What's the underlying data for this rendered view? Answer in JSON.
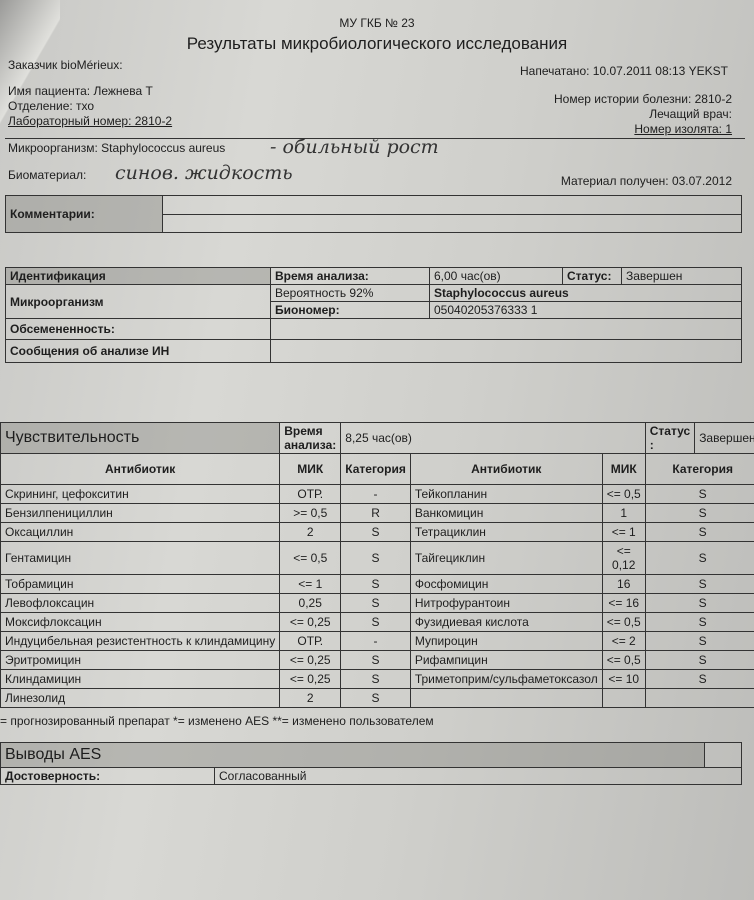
{
  "header": {
    "institution": "МУ ГКБ № 23",
    "title": "Результаты микробиологического исследования",
    "customer": "Заказчик bioMérieux:",
    "printed": "Напечатано: 10.07.2011  08:13 YEKST",
    "patient_name": "Имя пациента: Лежнева  Т",
    "department": "Отделение: тхо",
    "lab_number": "Лабораторный номер: 2810-2",
    "history_number": "Номер истории болезни: 2810-2",
    "doctor": "Лечащий врач:",
    "isolate_number": "Номер изолята: 1",
    "microorganism": "Микроорганизм: Staphylococcus aureus",
    "microorganism_handwritten": "- обильный рост",
    "biomaterial_label": "Биоматериал:",
    "biomaterial_handwritten": "синов. жидкость",
    "material_received": "Материал получен: 03.07.2012"
  },
  "comments": {
    "label": "Комментарии:"
  },
  "identification": {
    "label": "Идентификация",
    "time_label": "Время анализа:",
    "time_value": "6,00 час(ов)",
    "status_label": "Статус:",
    "status_value": "Завершен",
    "microorganism_label": "Микроорганизм",
    "probability": "Вероятность 92%",
    "organism": "Staphylococcus aureus",
    "bionumber_label": "Биономер:",
    "bionumber": "05040205376333 1",
    "contamination_label": "Обсемененность:",
    "messages_label": "Сообщения об анализе ИН"
  },
  "sensitivity": {
    "label": "Чувствительность",
    "time_label": "Время анализа:",
    "time_value": "8,25 час(ов)",
    "status_label": "Статус :",
    "status_value": "Завершен",
    "columns": [
      "Антибиотик",
      "МИК",
      "Категория"
    ],
    "rows": [
      {
        "a1": "Скрининг, цефокситин",
        "m1": "ОТР.",
        "c1": "-",
        "a2": "Тейкопланин",
        "m2": "<= 0,5",
        "c2": "S"
      },
      {
        "a1": "Бензилпенициллин",
        "m1": ">= 0,5",
        "c1": "R",
        "a2": "Ванкомицин",
        "m2": "1",
        "c2": "S"
      },
      {
        "a1": "Оксациллин",
        "m1": "2",
        "c1": "S",
        "a2": "Тетрациклин",
        "m2": "<= 1",
        "c2": "S"
      },
      {
        "a1": "Гентамицин",
        "m1": "<= 0,5",
        "c1": "S",
        "a2": "Тайгециклин",
        "m2": "<= 0,12",
        "c2": "S"
      },
      {
        "a1": "Тобрамицин",
        "m1": "<= 1",
        "c1": "S",
        "a2": "Фосфомицин",
        "m2": "16",
        "c2": "S"
      },
      {
        "a1": "Левофлоксацин",
        "m1": "0,25",
        "c1": "S",
        "a2": "Нитрофурантоин",
        "m2": "<= 16",
        "c2": "S"
      },
      {
        "a1": "Моксифлоксацин",
        "m1": "<= 0,25",
        "c1": "S",
        "a2": "Фузидиевая кислота",
        "m2": "<= 0,5",
        "c2": "S"
      },
      {
        "a1": "Индуцибельная резистентность к клиндамицину",
        "m1": "ОТР.",
        "c1": "-",
        "a2": "Мупироцин",
        "m2": "<= 2",
        "c2": "S"
      },
      {
        "a1": "Эритромицин",
        "m1": "<= 0,25",
        "c1": "S",
        "a2": "Рифампицин",
        "m2": "<= 0,5",
        "c2": "S"
      },
      {
        "a1": "Клиндамицин",
        "m1": "<= 0,25",
        "c1": "S",
        "a2": "Триметоприм/сульфаметоксазол",
        "m2": "<= 10",
        "c2": "S"
      },
      {
        "a1": "Линезолид",
        "m1": "2",
        "c1": "S",
        "a2": "",
        "m2": "",
        "c2": ""
      }
    ],
    "footnote": "= прогнозированный препарат  *= изменено AES **= изменено пользователем"
  },
  "aes": {
    "label": "Выводы AES",
    "reliability_label": "Достоверность:",
    "reliability_value": "Согласованный"
  }
}
